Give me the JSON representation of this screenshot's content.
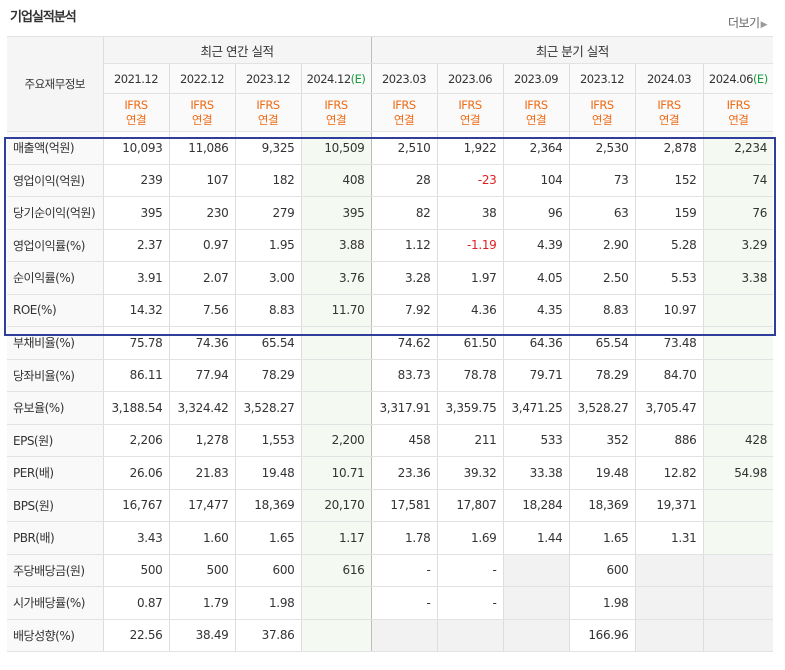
{
  "page": {
    "title": "기업실적분석",
    "more_label": "더보기",
    "more_arrow": "▶"
  },
  "header": {
    "label_col": "주요재무정보",
    "annual_group": "최근 연간 실적",
    "quarter_group": "최근 분기 실적",
    "periods": [
      "2021.12",
      "2022.12",
      "2023.12",
      "2024.12",
      "2023.03",
      "2023.06",
      "2023.09",
      "2023.12",
      "2024.03",
      "2024.06"
    ],
    "estimate_marks": [
      "",
      "",
      "",
      "(E)",
      "",
      "",
      "",
      "",
      "",
      "(E)"
    ],
    "ifrs_line1": "IFRS",
    "ifrs_line2": "연결"
  },
  "rows": [
    {
      "label": "매출액(억원)",
      "values": [
        "10,093",
        "11,086",
        "9,325",
        "10,509",
        "2,510",
        "1,922",
        "2,364",
        "2,530",
        "2,878",
        "2,234"
      ]
    },
    {
      "label": "영업이익(억원)",
      "values": [
        "239",
        "107",
        "182",
        "408",
        "28",
        "-23",
        "104",
        "73",
        "152",
        "74"
      ]
    },
    {
      "label": "당기순이익(억원)",
      "values": [
        "395",
        "230",
        "279",
        "395",
        "82",
        "38",
        "96",
        "63",
        "159",
        "76"
      ]
    },
    {
      "label": "영업이익률(%)",
      "values": [
        "2.37",
        "0.97",
        "1.95",
        "3.88",
        "1.12",
        "-1.19",
        "4.39",
        "2.90",
        "5.28",
        "3.29"
      ]
    },
    {
      "label": "순이익률(%)",
      "values": [
        "3.91",
        "2.07",
        "3.00",
        "3.76",
        "3.28",
        "1.97",
        "4.05",
        "2.50",
        "5.53",
        "3.38"
      ]
    },
    {
      "label": "ROE(%)",
      "values": [
        "14.32",
        "7.56",
        "8.83",
        "11.70",
        "7.92",
        "4.36",
        "4.35",
        "8.83",
        "10.97",
        ""
      ]
    },
    {
      "label": "부채비율(%)",
      "values": [
        "75.78",
        "74.36",
        "65.54",
        "",
        "74.62",
        "61.50",
        "64.36",
        "65.54",
        "73.48",
        ""
      ]
    },
    {
      "label": "당좌비율(%)",
      "values": [
        "86.11",
        "77.94",
        "78.29",
        "",
        "83.73",
        "78.78",
        "79.71",
        "78.29",
        "84.70",
        ""
      ]
    },
    {
      "label": "유보율(%)",
      "values": [
        "3,188.54",
        "3,324.42",
        "3,528.27",
        "",
        "3,317.91",
        "3,359.75",
        "3,471.25",
        "3,528.27",
        "3,705.47",
        ""
      ]
    },
    {
      "label": "EPS(원)",
      "values": [
        "2,206",
        "1,278",
        "1,553",
        "2,200",
        "458",
        "211",
        "533",
        "352",
        "886",
        "428"
      ]
    },
    {
      "label": "PER(배)",
      "values": [
        "26.06",
        "21.83",
        "19.48",
        "10.71",
        "23.36",
        "39.32",
        "33.38",
        "19.48",
        "12.82",
        "54.98"
      ]
    },
    {
      "label": "BPS(원)",
      "values": [
        "16,767",
        "17,477",
        "18,369",
        "20,170",
        "17,581",
        "17,807",
        "18,284",
        "18,369",
        "19,371",
        ""
      ]
    },
    {
      "label": "PBR(배)",
      "values": [
        "3.43",
        "1.60",
        "1.65",
        "1.17",
        "1.78",
        "1.69",
        "1.44",
        "1.65",
        "1.31",
        ""
      ]
    },
    {
      "label": "주당배당금(원)",
      "values": [
        "500",
        "500",
        "600",
        "616",
        "-",
        "-",
        "",
        "600",
        "",
        ""
      ]
    },
    {
      "label": "시가배당률(%)",
      "values": [
        "0.87",
        "1.79",
        "1.98",
        "",
        "-",
        "-",
        "",
        "1.98",
        "",
        ""
      ]
    },
    {
      "label": "배당성향(%)",
      "values": [
        "22.56",
        "38.49",
        "37.86",
        "",
        "",
        "",
        "",
        "166.96",
        "",
        ""
      ]
    }
  ]
}
